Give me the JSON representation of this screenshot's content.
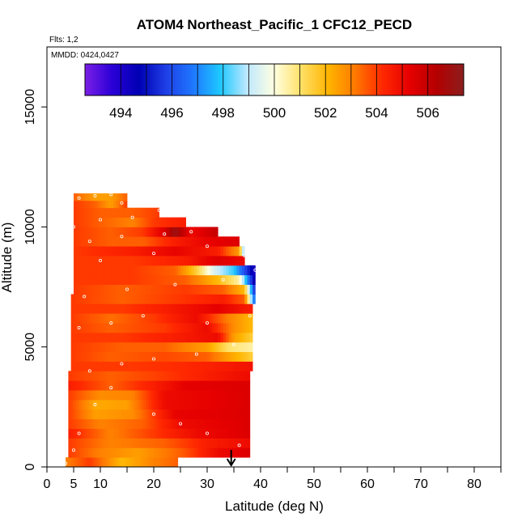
{
  "chart_data": {
    "type": "heatmap",
    "title": "ATOM4 Northeast_Pacific_1 CFC12_PECD",
    "flights_note": "Flts: 1,2",
    "date_note": "MMDD: 0424,0427",
    "xlabel": "Latitude (deg N)",
    "ylabel": "Altitude (m)",
    "xlim": [
      0,
      85
    ],
    "ylim": [
      0,
      17500
    ],
    "x_ticks": [
      0,
      5,
      10,
      20,
      30,
      40,
      50,
      60,
      70,
      80
    ],
    "x_minor_ticks": [
      15,
      25,
      35,
      45,
      55,
      65,
      75,
      85
    ],
    "y_ticks": [
      0,
      5000,
      10000,
      15000
    ],
    "colorbar": {
      "min": 492.6,
      "max": 507.4,
      "ticks": [
        494,
        496,
        498,
        500,
        502,
        504,
        506
      ],
      "colors": [
        "#7b1fe6",
        "#2b00d6",
        "#0000b4",
        "#1f3fe6",
        "#1e78ff",
        "#1ec8ff",
        "#bfe8ff",
        "#ffffe0",
        "#ffe066",
        "#ffb400",
        "#ff7800",
        "#ff2800",
        "#e60000",
        "#b40000",
        "#8c1e1e"
      ]
    },
    "arrow_latitude": 34.5,
    "bands": [
      {
        "alt_min": 0,
        "alt_max": 400,
        "lat_min": 3.5,
        "lat_max": 24.5,
        "stops": [
          [
            3.5,
            503
          ],
          [
            8,
            504
          ],
          [
            14,
            502
          ],
          [
            20,
            503
          ],
          [
            24.5,
            503.5
          ]
        ]
      },
      {
        "alt_min": 400,
        "alt_max": 800,
        "lat_min": 4,
        "lat_max": 38,
        "stops": [
          [
            4,
            504
          ],
          [
            10,
            503
          ],
          [
            17,
            502.5
          ],
          [
            25,
            503.5
          ],
          [
            32,
            505
          ],
          [
            38,
            505.5
          ]
        ]
      },
      {
        "alt_min": 800,
        "alt_max": 1200,
        "lat_min": 4,
        "lat_max": 38,
        "stops": [
          [
            4,
            504
          ],
          [
            12,
            503
          ],
          [
            22,
            503.5
          ],
          [
            30,
            504.5
          ],
          [
            38,
            505
          ]
        ]
      },
      {
        "alt_min": 1200,
        "alt_max": 1600,
        "lat_min": 4,
        "lat_max": 38,
        "stops": [
          [
            4,
            504.5
          ],
          [
            12,
            503
          ],
          [
            20,
            504
          ],
          [
            28,
            505
          ],
          [
            38,
            505.5
          ]
        ]
      },
      {
        "alt_min": 1600,
        "alt_max": 2000,
        "lat_min": 4,
        "lat_max": 38,
        "stops": [
          [
            4,
            504
          ],
          [
            10,
            503
          ],
          [
            18,
            503.5
          ],
          [
            25,
            505
          ],
          [
            38,
            505.5
          ]
        ]
      },
      {
        "alt_min": 2000,
        "alt_max": 2400,
        "lat_min": 4,
        "lat_max": 38,
        "stops": [
          [
            4,
            504
          ],
          [
            9,
            502.5
          ],
          [
            16,
            502.8
          ],
          [
            24,
            505.2
          ],
          [
            38,
            505.5
          ]
        ]
      },
      {
        "alt_min": 2400,
        "alt_max": 2800,
        "lat_min": 4,
        "lat_max": 38,
        "stops": [
          [
            4,
            504
          ],
          [
            9,
            502.3
          ],
          [
            15,
            502.5
          ],
          [
            22,
            505
          ],
          [
            38,
            505.5
          ]
        ]
      },
      {
        "alt_min": 2800,
        "alt_max": 3200,
        "lat_min": 4,
        "lat_max": 38,
        "stops": [
          [
            4,
            504
          ],
          [
            10,
            502.8
          ],
          [
            16,
            503
          ],
          [
            22,
            505
          ],
          [
            38,
            505.5
          ]
        ]
      },
      {
        "alt_min": 3200,
        "alt_max": 3600,
        "lat_min": 4,
        "lat_max": 38,
        "stops": [
          [
            4,
            504.5
          ],
          [
            12,
            503.5
          ],
          [
            20,
            504.5
          ],
          [
            26,
            505.3
          ],
          [
            38,
            505.5
          ]
        ]
      },
      {
        "alt_min": 3600,
        "alt_max": 4000,
        "lat_min": 4,
        "lat_max": 38,
        "stops": [
          [
            4,
            504
          ],
          [
            12,
            503.5
          ],
          [
            22,
            504
          ],
          [
            30,
            504.5
          ],
          [
            38,
            505
          ]
        ]
      },
      {
        "alt_min": 4000,
        "alt_max": 4400,
        "lat_min": 4.5,
        "lat_max": 38.5,
        "stops": [
          [
            4.5,
            504
          ],
          [
            14,
            504
          ],
          [
            25,
            504.2
          ],
          [
            32,
            504.5
          ],
          [
            38.5,
            504.8
          ]
        ]
      },
      {
        "alt_min": 4400,
        "alt_max": 4800,
        "lat_min": 4.5,
        "lat_max": 38.5,
        "stops": [
          [
            4.5,
            504
          ],
          [
            12,
            503.5
          ],
          [
            22,
            503.8
          ],
          [
            30,
            503.5
          ],
          [
            34,
            502.5
          ],
          [
            38.5,
            501.5
          ]
        ]
      },
      {
        "alt_min": 4800,
        "alt_max": 5200,
        "lat_min": 4.5,
        "lat_max": 38.5,
        "stops": [
          [
            4.5,
            504
          ],
          [
            14,
            503.5
          ],
          [
            22,
            503.5
          ],
          [
            30,
            502.5
          ],
          [
            34,
            501
          ],
          [
            38.5,
            500.5
          ]
        ]
      },
      {
        "alt_min": 5200,
        "alt_max": 5600,
        "lat_min": 4.5,
        "lat_max": 38.5,
        "stops": [
          [
            4.5,
            504
          ],
          [
            14,
            504
          ],
          [
            24,
            504.5
          ],
          [
            32,
            505
          ],
          [
            35,
            502.5
          ],
          [
            38.5,
            501.5
          ]
        ]
      },
      {
        "alt_min": 5600,
        "alt_max": 6000,
        "lat_min": 4.5,
        "lat_max": 38.5,
        "stops": [
          [
            4.5,
            504
          ],
          [
            12,
            503.5
          ],
          [
            22,
            504
          ],
          [
            30,
            505
          ],
          [
            35,
            502.8
          ],
          [
            38.5,
            502
          ]
        ]
      },
      {
        "alt_min": 6000,
        "alt_max": 6400,
        "lat_min": 4.5,
        "lat_max": 38.5,
        "stops": [
          [
            4.5,
            504
          ],
          [
            12,
            503.3
          ],
          [
            20,
            504
          ],
          [
            28,
            505
          ],
          [
            34,
            503
          ],
          [
            38.5,
            502
          ]
        ]
      },
      {
        "alt_min": 6400,
        "alt_max": 6800,
        "lat_min": 4.5,
        "lat_max": 38.5,
        "stops": [
          [
            4.5,
            504
          ],
          [
            14,
            504
          ],
          [
            22,
            504.5
          ],
          [
            32,
            505.3
          ],
          [
            38.5,
            504.5
          ]
        ]
      },
      {
        "alt_min": 6800,
        "alt_max": 7200,
        "lat_min": 4.5,
        "lat_max": 39,
        "stops": [
          [
            4.5,
            504
          ],
          [
            14,
            503.5
          ],
          [
            24,
            504
          ],
          [
            33,
            504.5
          ],
          [
            37,
            503.5
          ],
          [
            39,
            496
          ]
        ]
      },
      {
        "alt_min": 7200,
        "alt_max": 7600,
        "lat_min": 5,
        "lat_max": 39,
        "stops": [
          [
            5,
            504
          ],
          [
            14,
            503.5
          ],
          [
            26,
            504
          ],
          [
            33,
            503.5
          ],
          [
            37,
            502
          ],
          [
            39,
            495
          ]
        ]
      },
      {
        "alt_min": 7600,
        "alt_max": 8000,
        "lat_min": 5,
        "lat_max": 39,
        "stops": [
          [
            5,
            504
          ],
          [
            16,
            504
          ],
          [
            26,
            503.5
          ],
          [
            32,
            502
          ],
          [
            36,
            500.5
          ],
          [
            39,
            494
          ]
        ]
      },
      {
        "alt_min": 8000,
        "alt_max": 8400,
        "lat_min": 5,
        "lat_max": 39,
        "stops": [
          [
            5,
            504
          ],
          [
            16,
            504
          ],
          [
            24,
            503.5
          ],
          [
            28,
            501.5
          ],
          [
            31,
            499.5
          ],
          [
            35,
            498
          ],
          [
            39,
            494
          ]
        ]
      },
      {
        "alt_min": 8400,
        "alt_max": 8800,
        "lat_min": 5,
        "lat_max": 37,
        "stops": [
          [
            5,
            504
          ],
          [
            16,
            504
          ],
          [
            26,
            504.5
          ],
          [
            32,
            505.5
          ],
          [
            37,
            505
          ]
        ]
      },
      {
        "alt_min": 8800,
        "alt_max": 9200,
        "lat_min": 5,
        "lat_max": 37,
        "stops": [
          [
            5,
            504
          ],
          [
            16,
            504.5
          ],
          [
            24,
            505.2
          ],
          [
            32,
            504.5
          ],
          [
            36,
            502.5
          ],
          [
            37,
            498
          ]
        ]
      },
      {
        "alt_min": 9200,
        "alt_max": 9600,
        "lat_min": 5,
        "lat_max": 36,
        "stops": [
          [
            5,
            504
          ],
          [
            12,
            503.5
          ],
          [
            18,
            503.5
          ],
          [
            24,
            504.5
          ],
          [
            30,
            505.2
          ],
          [
            36,
            505.5
          ]
        ]
      },
      {
        "alt_min": 9600,
        "alt_max": 10000,
        "lat_min": 5,
        "lat_max": 32,
        "stops": [
          [
            5,
            504
          ],
          [
            12,
            503.5
          ],
          [
            18,
            504
          ],
          [
            22,
            505.5
          ],
          [
            24,
            507
          ],
          [
            27,
            505
          ],
          [
            32,
            506
          ]
        ]
      },
      {
        "alt_min": 10000,
        "alt_max": 10400,
        "lat_min": 5,
        "lat_max": 26,
        "stops": [
          [
            5,
            504
          ],
          [
            10,
            503.5
          ],
          [
            16,
            503
          ],
          [
            20,
            504
          ],
          [
            26,
            504.5
          ]
        ]
      },
      {
        "alt_min": 10400,
        "alt_max": 10800,
        "lat_min": 5,
        "lat_max": 21,
        "stops": [
          [
            5,
            504
          ],
          [
            10,
            503.5
          ],
          [
            16,
            503.5
          ],
          [
            21,
            504
          ]
        ]
      },
      {
        "alt_min": 10800,
        "alt_max": 11100,
        "lat_min": 5,
        "lat_max": 15,
        "stops": [
          [
            5,
            504
          ],
          [
            9,
            503.5
          ],
          [
            12,
            502.5
          ],
          [
            15,
            504
          ]
        ]
      },
      {
        "alt_min": 11100,
        "alt_max": 11400,
        "lat_min": 5,
        "lat_max": 15,
        "stops": [
          [
            5,
            503.5
          ],
          [
            9,
            502.5
          ],
          [
            12,
            502.5
          ],
          [
            15,
            503.5
          ]
        ]
      }
    ],
    "samples": [
      [
        3.5,
        150
      ],
      [
        5,
        700
      ],
      [
        6,
        1400
      ],
      [
        9,
        2600
      ],
      [
        12,
        3300
      ],
      [
        20,
        2200
      ],
      [
        25,
        1800
      ],
      [
        30,
        1400
      ],
      [
        36,
        900
      ],
      [
        8,
        4000
      ],
      [
        14,
        4300
      ],
      [
        20,
        4500
      ],
      [
        28,
        4700
      ],
      [
        35,
        5100
      ],
      [
        6,
        5800
      ],
      [
        12,
        6000
      ],
      [
        18,
        6300
      ],
      [
        30,
        6000
      ],
      [
        38,
        6300
      ],
      [
        7,
        7100
      ],
      [
        15,
        7400
      ],
      [
        24,
        7600
      ],
      [
        33,
        7800
      ],
      [
        39,
        8200
      ],
      [
        10,
        8600
      ],
      [
        20,
        8900
      ],
      [
        30,
        9200
      ],
      [
        37,
        8800
      ],
      [
        8,
        9400
      ],
      [
        14,
        9600
      ],
      [
        22,
        9700
      ],
      [
        27,
        9800
      ],
      [
        5,
        10000
      ],
      [
        10,
        10300
      ],
      [
        16,
        10400
      ],
      [
        21,
        10700
      ],
      [
        6,
        11200
      ],
      [
        9,
        11300
      ],
      [
        12,
        11350
      ],
      [
        14,
        11000
      ]
    ]
  }
}
